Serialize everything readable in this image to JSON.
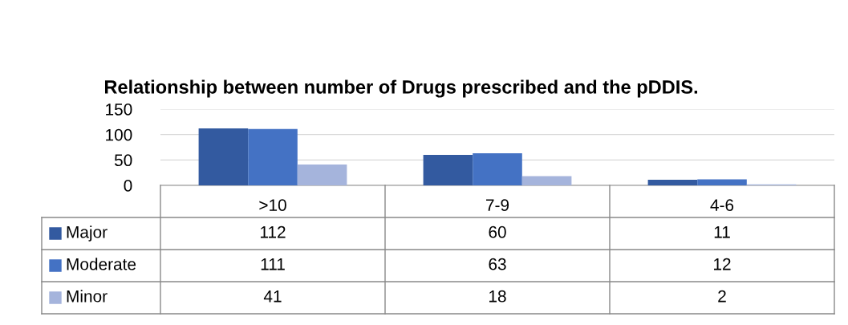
{
  "chart_data": {
    "type": "bar",
    "title": "Relationship between number of Drugs prescribed and the pDDIS.",
    "categories": [
      ">10",
      "7-9",
      "4-6"
    ],
    "series": [
      {
        "name": "Major",
        "color": "#335aa0",
        "values": [
          112,
          60,
          11
        ]
      },
      {
        "name": "Moderate",
        "color": "#4472c4",
        "values": [
          111,
          63,
          12
        ]
      },
      {
        "name": "Minor",
        "color": "#a5b4dc",
        "values": [
          41,
          18,
          2
        ]
      }
    ],
    "ylim": [
      0,
      150
    ],
    "yticks": [
      0,
      50,
      100,
      150
    ],
    "grid": "y",
    "legend": "bottom",
    "data_labels": true
  }
}
